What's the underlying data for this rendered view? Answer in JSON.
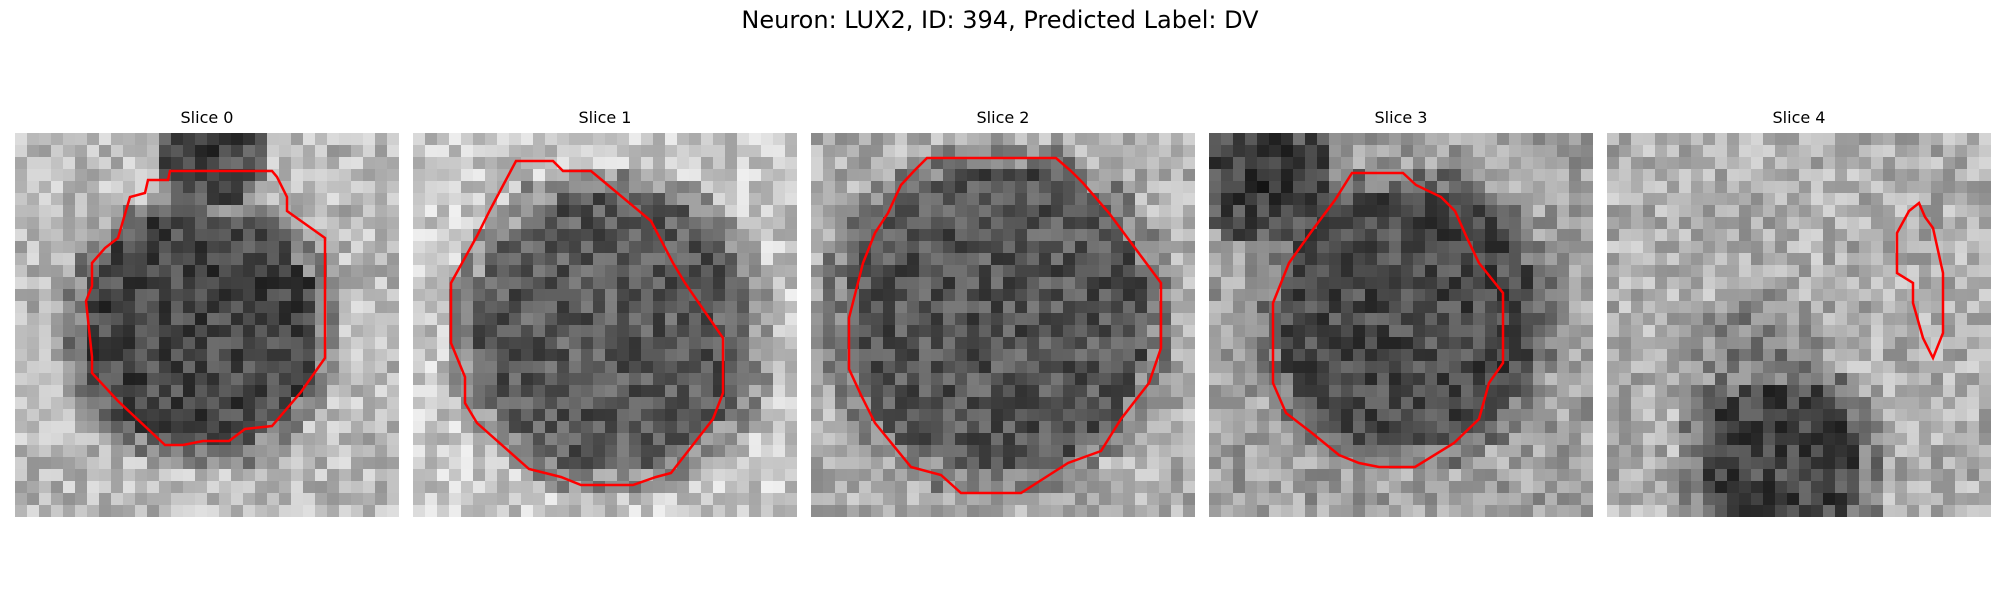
{
  "figure": {
    "title": "Neuron: LUX2, ID: 394, Predicted Label: DV",
    "contour_color": "#ff0000"
  },
  "panels": [
    {
      "title": "Slice 0",
      "contour": true
    },
    {
      "title": "Slice 1",
      "contour": true
    },
    {
      "title": "Slice 2",
      "contour": true
    },
    {
      "title": "Slice 3",
      "contour": true
    },
    {
      "title": "Slice 4",
      "contour": true
    }
  ]
}
